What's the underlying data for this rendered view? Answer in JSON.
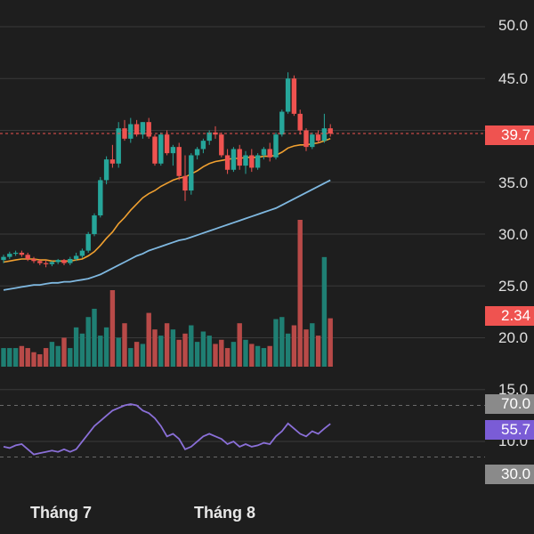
{
  "colors": {
    "background": "#1e1e1e",
    "up": "#26a69a",
    "down": "#ef5350",
    "vol_up": "#1f7f73",
    "vol_down": "#b84a48",
    "ma_fast": "#f0a030",
    "ma_slow": "#7fb8e0",
    "rsi": "#8a6fd8",
    "price_line": "#ef5350",
    "grid": "#3a3a3a"
  },
  "chart_data": {
    "type": "candlestick",
    "price_axis": {
      "ticks": [
        50,
        45,
        40,
        35,
        30,
        25,
        20,
        15,
        10
      ],
      "tick_labels": [
        "50.0",
        "45.0",
        "40.0",
        "35.0",
        "30.0",
        "25.0",
        "20.0",
        "15.0",
        "10.0"
      ],
      "range": [
        10,
        52
      ]
    },
    "x_labels": [
      "Tháng 7",
      "Tháng 8"
    ],
    "last_price": 39.7,
    "badges": {
      "price": "39.7",
      "volume": "2.34",
      "rsi_upper": "70.0",
      "rsi_value": "55.7",
      "rsi_lower": "30.0"
    },
    "candles": [
      [
        27.5,
        28.0,
        27.2,
        27.8
      ],
      [
        27.8,
        28.3,
        27.6,
        28.1
      ],
      [
        28.1,
        28.4,
        27.9,
        28.2
      ],
      [
        28.2,
        28.4,
        27.8,
        28.0
      ],
      [
        28.0,
        28.2,
        27.4,
        27.6
      ],
      [
        27.6,
        27.8,
        27.2,
        27.4
      ],
      [
        27.4,
        27.6,
        27.0,
        27.2
      ],
      [
        27.2,
        27.5,
        26.8,
        27.1
      ],
      [
        27.1,
        27.4,
        26.9,
        27.3
      ],
      [
        27.3,
        27.6,
        27.1,
        27.5
      ],
      [
        27.5,
        27.6,
        27.0,
        27.2
      ],
      [
        27.2,
        27.8,
        27.0,
        27.6
      ],
      [
        27.6,
        28.2,
        27.4,
        27.9
      ],
      [
        27.9,
        28.6,
        27.7,
        28.4
      ],
      [
        28.4,
        30.2,
        28.2,
        30.0
      ],
      [
        30.0,
        32.0,
        29.8,
        31.8
      ],
      [
        31.8,
        35.5,
        31.6,
        35.2
      ],
      [
        35.2,
        37.5,
        34.8,
        37.2
      ],
      [
        37.2,
        38.6,
        36.4,
        36.8
      ],
      [
        36.8,
        40.8,
        36.4,
        40.2
      ],
      [
        40.2,
        41.0,
        39.0,
        39.2
      ],
      [
        39.2,
        41.2,
        38.8,
        40.6
      ],
      [
        40.6,
        41.0,
        39.4,
        39.6
      ],
      [
        39.6,
        40.8,
        39.2,
        40.8
      ],
      [
        40.8,
        41.2,
        39.2,
        39.4
      ],
      [
        39.4,
        39.6,
        36.6,
        36.8
      ],
      [
        36.8,
        39.8,
        36.6,
        39.6
      ],
      [
        39.6,
        40.0,
        37.6,
        37.8
      ],
      [
        37.8,
        38.6,
        36.6,
        38.4
      ],
      [
        38.4,
        38.8,
        35.2,
        35.6
      ],
      [
        35.6,
        37.6,
        33.2,
        34.2
      ],
      [
        34.2,
        37.8,
        33.8,
        37.6
      ],
      [
        37.6,
        38.4,
        37.2,
        38.2
      ],
      [
        38.2,
        39.2,
        37.8,
        39.0
      ],
      [
        39.0,
        40.0,
        38.6,
        39.8
      ],
      [
        39.8,
        40.4,
        39.2,
        39.6
      ],
      [
        39.6,
        39.8,
        37.4,
        37.6
      ],
      [
        37.6,
        38.2,
        35.8,
        36.2
      ],
      [
        36.2,
        38.4,
        36.0,
        38.2
      ],
      [
        38.2,
        38.6,
        36.2,
        36.6
      ],
      [
        36.6,
        38.0,
        35.8,
        37.6
      ],
      [
        37.6,
        38.2,
        36.0,
        36.4
      ],
      [
        36.4,
        37.8,
        36.2,
        37.6
      ],
      [
        37.6,
        38.4,
        37.2,
        38.2
      ],
      [
        38.2,
        38.8,
        37.0,
        37.4
      ],
      [
        37.4,
        39.8,
        37.2,
        39.6
      ],
      [
        39.6,
        42.0,
        39.4,
        41.8
      ],
      [
        41.8,
        45.6,
        41.6,
        45.0
      ],
      [
        45.0,
        45.3,
        41.4,
        41.6
      ],
      [
        41.6,
        42.0,
        39.6,
        40.0
      ],
      [
        40.0,
        40.2,
        38.0,
        38.4
      ],
      [
        38.4,
        39.8,
        38.2,
        39.6
      ],
      [
        39.6,
        40.0,
        38.8,
        39.0
      ],
      [
        39.0,
        41.6,
        38.8,
        40.2
      ],
      [
        40.2,
        40.6,
        39.4,
        39.7
      ]
    ],
    "volume": [
      0.9,
      0.9,
      0.9,
      1.0,
      0.9,
      0.7,
      0.6,
      0.9,
      1.2,
      1.0,
      1.4,
      0.9,
      1.9,
      1.6,
      2.4,
      2.8,
      1.5,
      1.9,
      3.7,
      1.4,
      2.1,
      0.9,
      1.2,
      1.1,
      2.6,
      1.8,
      1.5,
      2.1,
      1.8,
      1.3,
      1.6,
      2.0,
      1.2,
      1.7,
      1.5,
      1.1,
      1.3,
      0.9,
      1.2,
      2.1,
      1.3,
      1.1,
      1.0,
      0.9,
      1.0,
      2.3,
      2.4,
      1.6,
      2.0,
      7.1,
      1.8,
      2.1,
      1.5,
      5.3,
      2.34
    ],
    "rsi": [
      38,
      37,
      39,
      40,
      36,
      32,
      33,
      34,
      35,
      34,
      36,
      34,
      36,
      42,
      48,
      54,
      58,
      62,
      66,
      68,
      70,
      71,
      70,
      66,
      64,
      60,
      54,
      46,
      48,
      44,
      36,
      38,
      42,
      46,
      48,
      46,
      44,
      40,
      42,
      38,
      40,
      38,
      39,
      41,
      40,
      46,
      50,
      56,
      52,
      48,
      46,
      50,
      48,
      52,
      55.7
    ],
    "ma_fast": [
      27.3,
      27.4,
      27.5,
      27.6,
      27.6,
      27.6,
      27.5,
      27.5,
      27.4,
      27.4,
      27.4,
      27.4,
      27.5,
      27.6,
      27.9,
      28.3,
      28.9,
      29.6,
      30.2,
      31.0,
      31.6,
      32.3,
      32.9,
      33.5,
      33.9,
      34.2,
      34.6,
      34.9,
      35.2,
      35.4,
      35.5,
      35.8,
      36.1,
      36.5,
      36.8,
      37.0,
      37.1,
      37.2,
      37.3,
      37.3,
      37.4,
      37.4,
      37.4,
      37.5,
      37.5,
      37.6,
      37.9,
      38.3,
      38.5,
      38.6,
      38.6,
      38.7,
      38.8,
      39.0,
      39.2
    ],
    "ma_slow": [
      24.6,
      24.7,
      24.8,
      24.9,
      25.0,
      25.1,
      25.1,
      25.2,
      25.3,
      25.3,
      25.4,
      25.4,
      25.5,
      25.6,
      25.7,
      25.9,
      26.1,
      26.4,
      26.7,
      27.0,
      27.3,
      27.6,
      27.9,
      28.1,
      28.4,
      28.6,
      28.8,
      29.0,
      29.2,
      29.4,
      29.5,
      29.7,
      29.9,
      30.1,
      30.3,
      30.5,
      30.7,
      30.9,
      31.1,
      31.3,
      31.5,
      31.7,
      31.9,
      32.1,
      32.3,
      32.5,
      32.8,
      33.1,
      33.4,
      33.7,
      34.0,
      34.3,
      34.6,
      34.9,
      35.2
    ]
  }
}
